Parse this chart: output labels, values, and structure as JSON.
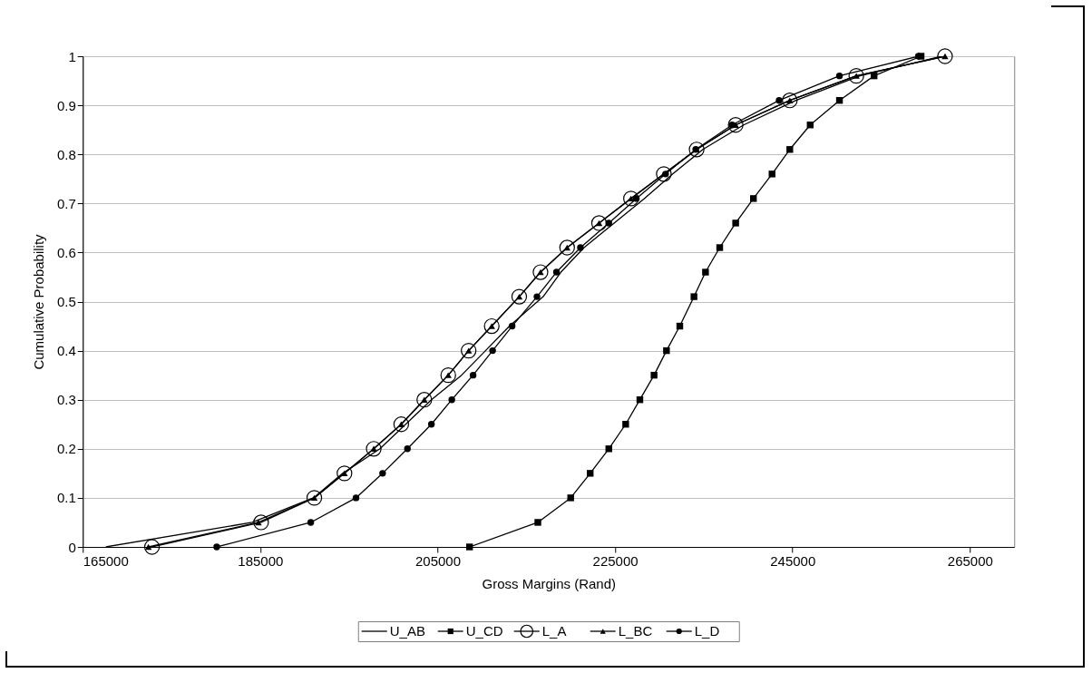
{
  "chart_data": {
    "type": "line",
    "xlabel": "Gross Margins (Rand)",
    "ylabel": "Cumulative Probability",
    "xlim": [
      165000,
      270000
    ],
    "xticks": [
      165000,
      185000,
      205000,
      225000,
      245000,
      265000
    ],
    "ylim": [
      0,
      1
    ],
    "yticks": [
      0,
      0.1,
      0.2,
      0.3,
      0.4,
      0.5,
      0.6,
      0.7,
      0.8,
      0.9,
      1
    ],
    "grid": "y",
    "legend": "bottom",
    "line_style": "solid",
    "series": [
      {
        "name": "U_AB",
        "color": "#000000",
        "marker": "none",
        "x": [
          167600,
          184100,
          191000,
          194300,
          198500,
          201400,
          204300,
          207700,
          210400,
          213100,
          216900,
          218900,
          221500,
          224900,
          228300,
          231500,
          234900,
          239500,
          245400,
          252600,
          261800
        ],
        "values": [
          0,
          0.05,
          0.1,
          0.15,
          0.2,
          0.25,
          0.3,
          0.35,
          0.4,
          0.45,
          0.51,
          0.56,
          0.61,
          0.66,
          0.71,
          0.76,
          0.81,
          0.86,
          0.91,
          0.96,
          1
        ]
      },
      {
        "name": "U_CD",
        "color": "#000000",
        "marker": "square",
        "x": [
          208600,
          216300,
          220000,
          222200,
          224300,
          226200,
          227800,
          229400,
          230800,
          232300,
          233900,
          235200,
          236800,
          238600,
          240600,
          242700,
          244700,
          247000,
          250300,
          254200,
          259500
        ],
        "values": [
          0,
          0.05,
          0.1,
          0.15,
          0.2,
          0.25,
          0.3,
          0.35,
          0.4,
          0.45,
          0.51,
          0.56,
          0.61,
          0.66,
          0.71,
          0.76,
          0.81,
          0.86,
          0.91,
          0.96,
          1
        ]
      },
      {
        "name": "L_A",
        "color": "#000000",
        "marker": "circle",
        "x": [
          172800,
          185100,
          191100,
          194500,
          197800,
          200900,
          203500,
          206200,
          208500,
          211100,
          214200,
          216600,
          219600,
          223200,
          226800,
          230500,
          234200,
          238600,
          244700,
          252200,
          262200
        ],
        "values": [
          0,
          0.05,
          0.1,
          0.15,
          0.2,
          0.25,
          0.3,
          0.35,
          0.4,
          0.45,
          0.51,
          0.56,
          0.61,
          0.66,
          0.71,
          0.76,
          0.81,
          0.86,
          0.91,
          0.96,
          1
        ]
      },
      {
        "name": "L_BC",
        "color": "#000000",
        "marker": "triangle",
        "x": [
          172400,
          184800,
          191100,
          194500,
          197800,
          200900,
          203500,
          206200,
          208500,
          211100,
          214200,
          216600,
          219600,
          223200,
          226800,
          230500,
          234200,
          238600,
          244700,
          252200,
          262200
        ],
        "values": [
          0,
          0.05,
          0.1,
          0.15,
          0.2,
          0.25,
          0.3,
          0.35,
          0.4,
          0.45,
          0.51,
          0.56,
          0.61,
          0.66,
          0.71,
          0.76,
          0.81,
          0.86,
          0.91,
          0.96,
          1
        ]
      },
      {
        "name": "L_D",
        "color": "#000000",
        "marker": "circle",
        "x": [
          180100,
          190700,
          195800,
          198800,
          201600,
          204300,
          206600,
          209000,
          211200,
          213400,
          216200,
          218400,
          221100,
          224300,
          227400,
          230700,
          234100,
          238200,
          243500,
          250300,
          259200
        ],
        "values": [
          0,
          0.05,
          0.1,
          0.15,
          0.2,
          0.25,
          0.3,
          0.35,
          0.4,
          0.45,
          0.51,
          0.56,
          0.61,
          0.66,
          0.71,
          0.76,
          0.81,
          0.86,
          0.91,
          0.96,
          1
        ]
      }
    ]
  }
}
